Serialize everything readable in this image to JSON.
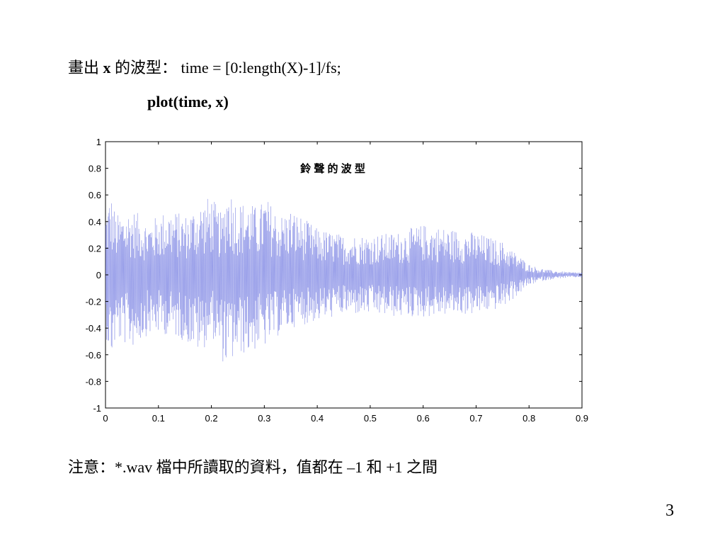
{
  "slide": {
    "line1_prefix": "畫出",
    "line1_var": "x",
    "line1_middle": "的波型：",
    "line1_code": "time = [0:length(X)-1]/fs;",
    "line2_code": "plot(time, x)",
    "note": "注意：*.wav 檔中所讀取的資料，值都在 –1 和 +1 之間",
    "page_number": "3"
  },
  "chart_data": {
    "type": "line",
    "title": "鈴 聲 的 波 型",
    "xlabel": "",
    "ylabel": "",
    "xlim": [
      0,
      0.9
    ],
    "ylim": [
      -1,
      1
    ],
    "x_ticks": [
      "0",
      "0.1",
      "0.2",
      "0.3",
      "0.4",
      "0.5",
      "0.6",
      "0.7",
      "0.8",
      "0.9"
    ],
    "y_ticks": [
      "1",
      "0.8",
      "0.6",
      "0.4",
      "0.2",
      "0",
      "-0.2",
      "-0.4",
      "-0.6",
      "-0.8",
      "-1"
    ],
    "grid": false,
    "series": [
      {
        "color": "#6b74e0",
        "envelope": {
          "x": [
            0,
            0.01,
            0.02,
            0.05,
            0.08,
            0.12,
            0.15,
            0.18,
            0.2,
            0.22,
            0.23,
            0.25,
            0.27,
            0.29,
            0.3,
            0.33,
            0.35,
            0.4,
            0.45,
            0.5,
            0.55,
            0.6,
            0.65,
            0.7,
            0.75,
            0.78,
            0.8,
            0.82,
            0.85,
            0.88,
            0.9
          ],
          "upper": [
            0.5,
            0.62,
            0.45,
            0.5,
            0.4,
            0.5,
            0.45,
            0.55,
            0.6,
            0.45,
            0.7,
            0.55,
            0.55,
            0.5,
            0.6,
            0.45,
            0.5,
            0.35,
            0.3,
            0.3,
            0.32,
            0.38,
            0.35,
            0.32,
            0.25,
            0.15,
            0.08,
            0.05,
            0.03,
            0.02,
            0.02
          ],
          "lower": [
            -0.45,
            -0.65,
            -0.5,
            -0.55,
            -0.45,
            -0.45,
            -0.5,
            -0.6,
            -0.45,
            -0.65,
            -0.7,
            -0.6,
            -0.6,
            -0.55,
            -0.55,
            -0.45,
            -0.4,
            -0.35,
            -0.3,
            -0.3,
            -0.32,
            -0.32,
            -0.3,
            -0.3,
            -0.25,
            -0.15,
            -0.08,
            -0.05,
            -0.03,
            -0.02,
            -0.02
          ]
        }
      }
    ]
  }
}
